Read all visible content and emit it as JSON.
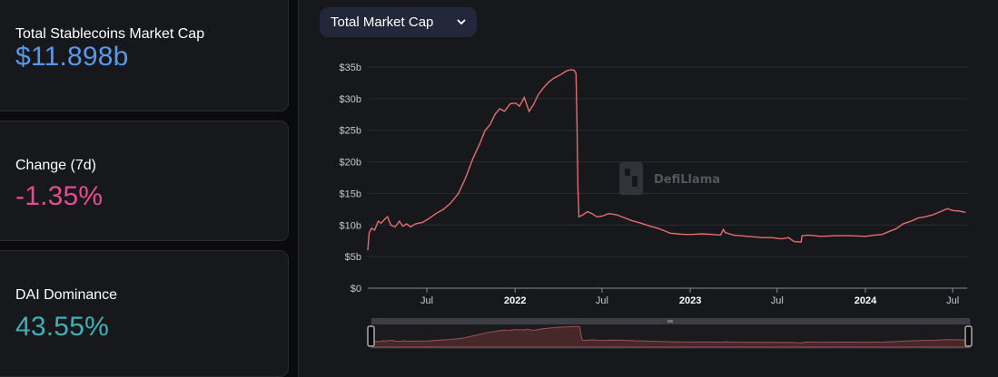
{
  "stats": [
    {
      "label": "Total Stablecoins Market Cap",
      "value": "$11.898b",
      "color": "#5a97e8"
    },
    {
      "label": "Change (7d)",
      "value": "-1.35%",
      "color": "#e84a91"
    },
    {
      "label": "DAI Dominance",
      "value": "43.55%",
      "color": "#3fb1b5"
    }
  ],
  "dropdown": {
    "label": "Total Market Cap",
    "icon": "chevron-down-icon"
  },
  "watermark": "DefiLlama",
  "chart_data": {
    "type": "line",
    "title": "",
    "xlabel": "",
    "ylabel": "",
    "ylim": [
      0,
      35
    ],
    "y_unit": "b",
    "y_ticks": [
      "$0",
      "$5b",
      "$10b",
      "$15b",
      "$20b",
      "$25b",
      "$30b",
      "$35b"
    ],
    "y_tick_values": [
      0,
      5,
      10,
      15,
      20,
      25,
      30,
      35
    ],
    "x_range": [
      "2021-02-28",
      "2024-07-31"
    ],
    "x_ticks": [
      {
        "date": "2021-07-01",
        "label": "Jul"
      },
      {
        "date": "2022-01-01",
        "label": "2022"
      },
      {
        "date": "2022-07-01",
        "label": "Jul"
      },
      {
        "date": "2023-01-01",
        "label": "2023"
      },
      {
        "date": "2023-07-01",
        "label": "Jul"
      },
      {
        "date": "2024-01-01",
        "label": "2024"
      },
      {
        "date": "2024-07-01",
        "label": "Jul"
      }
    ],
    "grid": true,
    "color": "#e46e6e",
    "series": [
      {
        "name": "",
        "points": [
          [
            "2021-02-28",
            6.0
          ],
          [
            "2021-03-03",
            8.8
          ],
          [
            "2021-03-08",
            9.5
          ],
          [
            "2021-03-14",
            9.2
          ],
          [
            "2021-03-22",
            10.6
          ],
          [
            "2021-03-28",
            10.3
          ],
          [
            "2021-04-04",
            10.9
          ],
          [
            "2021-04-10",
            11.3
          ],
          [
            "2021-04-17",
            10.0
          ],
          [
            "2021-04-26",
            9.7
          ],
          [
            "2021-05-05",
            10.6
          ],
          [
            "2021-05-12",
            9.8
          ],
          [
            "2021-05-20",
            10.2
          ],
          [
            "2021-05-28",
            9.7
          ],
          [
            "2021-06-08",
            10.2
          ],
          [
            "2021-06-22",
            10.4
          ],
          [
            "2021-07-05",
            11.0
          ],
          [
            "2021-07-20",
            11.8
          ],
          [
            "2021-08-05",
            12.5
          ],
          [
            "2021-08-20",
            13.5
          ],
          [
            "2021-09-05",
            15.0
          ],
          [
            "2021-09-20",
            17.5
          ],
          [
            "2021-10-05",
            20.5
          ],
          [
            "2021-10-20",
            23.0
          ],
          [
            "2021-10-30",
            24.9
          ],
          [
            "2021-11-10",
            25.9
          ],
          [
            "2021-11-20",
            27.5
          ],
          [
            "2021-11-30",
            28.4
          ],
          [
            "2021-12-10",
            28.0
          ],
          [
            "2021-12-22",
            29.2
          ],
          [
            "2022-01-02",
            29.3
          ],
          [
            "2022-01-10",
            28.8
          ],
          [
            "2022-01-20",
            30.2
          ],
          [
            "2022-01-30",
            28.0
          ],
          [
            "2022-02-08",
            29.0
          ],
          [
            "2022-02-18",
            30.6
          ],
          [
            "2022-03-01",
            31.7
          ],
          [
            "2022-03-12",
            32.6
          ],
          [
            "2022-03-22",
            33.2
          ],
          [
            "2022-04-01",
            33.6
          ],
          [
            "2022-04-10",
            34.0
          ],
          [
            "2022-04-18",
            34.4
          ],
          [
            "2022-04-28",
            34.6
          ],
          [
            "2022-05-04",
            34.5
          ],
          [
            "2022-05-08",
            34.0
          ],
          [
            "2022-05-10",
            26.0
          ],
          [
            "2022-05-12",
            16.0
          ],
          [
            "2022-05-14",
            11.3
          ],
          [
            "2022-05-22",
            11.6
          ],
          [
            "2022-06-01",
            12.1
          ],
          [
            "2022-06-10",
            11.8
          ],
          [
            "2022-06-20",
            11.3
          ],
          [
            "2022-07-01",
            11.4
          ],
          [
            "2022-07-15",
            11.8
          ],
          [
            "2022-08-01",
            11.6
          ],
          [
            "2022-08-15",
            11.2
          ],
          [
            "2022-09-01",
            10.7
          ],
          [
            "2022-09-20",
            10.3
          ],
          [
            "2022-10-10",
            9.8
          ],
          [
            "2022-10-25",
            9.5
          ],
          [
            "2022-11-08",
            9.1
          ],
          [
            "2022-11-20",
            8.7
          ],
          [
            "2022-12-05",
            8.6
          ],
          [
            "2022-12-20",
            8.5
          ],
          [
            "2023-01-05",
            8.5
          ],
          [
            "2023-01-25",
            8.6
          ],
          [
            "2023-02-15",
            8.5
          ],
          [
            "2023-03-05",
            8.4
          ],
          [
            "2023-03-11",
            9.3
          ],
          [
            "2023-03-15",
            8.8
          ],
          [
            "2023-04-01",
            8.4
          ],
          [
            "2023-05-01",
            8.2
          ],
          [
            "2023-06-01",
            8.0
          ],
          [
            "2023-06-20",
            8.0
          ],
          [
            "2023-07-10",
            7.8
          ],
          [
            "2023-07-25",
            8.0
          ],
          [
            "2023-08-05",
            7.4
          ],
          [
            "2023-08-20",
            7.3
          ],
          [
            "2023-08-22",
            8.3
          ],
          [
            "2023-09-05",
            8.4
          ],
          [
            "2023-10-01",
            8.2
          ],
          [
            "2023-11-01",
            8.3
          ],
          [
            "2023-12-01",
            8.3
          ],
          [
            "2024-01-01",
            8.2
          ],
          [
            "2024-01-20",
            8.4
          ],
          [
            "2024-02-05",
            8.5
          ],
          [
            "2024-02-20",
            9.0
          ],
          [
            "2024-03-05",
            9.4
          ],
          [
            "2024-03-20",
            10.2
          ],
          [
            "2024-04-05",
            10.6
          ],
          [
            "2024-04-20",
            11.1
          ],
          [
            "2024-05-05",
            11.3
          ],
          [
            "2024-05-20",
            11.6
          ],
          [
            "2024-06-05",
            12.1
          ],
          [
            "2024-06-20",
            12.6
          ],
          [
            "2024-07-01",
            12.3
          ],
          [
            "2024-07-15",
            12.2
          ],
          [
            "2024-07-28",
            12.0
          ]
        ]
      }
    ]
  }
}
